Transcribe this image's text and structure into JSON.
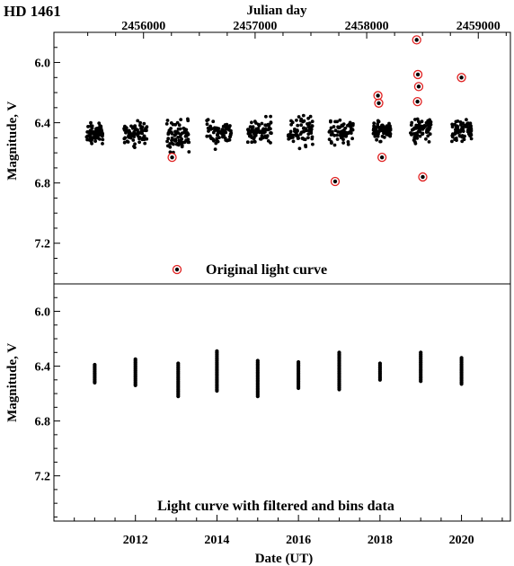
{
  "chart_data": {
    "type": "scatter",
    "title": "HD 1461",
    "top_axis": {
      "label": "Julian day",
      "ticks": [
        2456000,
        2457000,
        2458000,
        2459000
      ],
      "tick_labels": [
        "2456000",
        "2457000",
        "2458000",
        "2459000"
      ]
    },
    "bottom_axis": {
      "label": "Date (UT)",
      "range": [
        2010.0,
        2021.2
      ],
      "ticks": [
        2012,
        2014,
        2016,
        2018,
        2020
      ],
      "tick_labels": [
        "2012",
        "2014",
        "2016",
        "2018",
        "2020"
      ]
    },
    "panels": [
      {
        "ylabel": "Magnitude, V",
        "ylim": [
          7.47,
          5.8
        ],
        "y_inverted": true,
        "y_ticks": [
          6.0,
          6.4,
          6.8,
          7.2
        ],
        "y_tick_labels": [
          "6.0",
          "6.4",
          "6.8",
          "7.2"
        ],
        "legend": {
          "marker": "black dot with red circle",
          "label": "Original light curve",
          "placement": "bottom-center"
        },
        "seasons": [
          {
            "center": 2011.0,
            "halfwidth": 0.2,
            "mean": 6.47,
            "spread": 0.03
          },
          {
            "center": 2012.0,
            "halfwidth": 0.28,
            "mean": 6.47,
            "spread": 0.04
          },
          {
            "center": 2013.05,
            "halfwidth": 0.28,
            "mean": 6.49,
            "spread": 0.05
          },
          {
            "center": 2014.05,
            "halfwidth": 0.3,
            "mean": 6.47,
            "spread": 0.04
          },
          {
            "center": 2015.05,
            "halfwidth": 0.3,
            "mean": 6.46,
            "spread": 0.04
          },
          {
            "center": 2016.05,
            "halfwidth": 0.3,
            "mean": 6.46,
            "spread": 0.05
          },
          {
            "center": 2017.05,
            "halfwidth": 0.3,
            "mean": 6.45,
            "spread": 0.04
          },
          {
            "center": 2018.05,
            "halfwidth": 0.22,
            "mean": 6.45,
            "spread": 0.03
          },
          {
            "center": 2019.0,
            "halfwidth": 0.25,
            "mean": 6.45,
            "spread": 0.04
          },
          {
            "center": 2020.0,
            "halfwidth": 0.25,
            "mean": 6.45,
            "spread": 0.03
          }
        ],
        "outliers": [
          {
            "x": 2012.9,
            "y": 6.63
          },
          {
            "x": 2016.9,
            "y": 6.79
          },
          {
            "x": 2017.95,
            "y": 6.22
          },
          {
            "x": 2017.97,
            "y": 6.27
          },
          {
            "x": 2018.05,
            "y": 6.63
          },
          {
            "x": 2018.9,
            "y": 5.85
          },
          {
            "x": 2018.93,
            "y": 6.08
          },
          {
            "x": 2018.95,
            "y": 6.16
          },
          {
            "x": 2018.92,
            "y": 6.26
          },
          {
            "x": 2019.05,
            "y": 6.76
          },
          {
            "x": 2020.0,
            "y": 6.1
          }
        ]
      },
      {
        "ylabel": "Magnitude, V",
        "ylim": [
          7.53,
          5.8
        ],
        "y_inverted": true,
        "y_ticks": [
          6.0,
          6.4,
          6.8,
          7.2
        ],
        "y_tick_labels": [
          "6.0",
          "6.4",
          "6.8",
          "7.2"
        ],
        "annotation": "Light curve  with filtered and bins data",
        "bins": [
          {
            "x": 2011.0,
            "ymin": 6.39,
            "ymax": 6.52
          },
          {
            "x": 2012.0,
            "ymin": 6.35,
            "ymax": 6.54
          },
          {
            "x": 2013.05,
            "ymin": 6.38,
            "ymax": 6.62
          },
          {
            "x": 2014.0,
            "ymin": 6.29,
            "ymax": 6.58
          },
          {
            "x": 2015.0,
            "ymin": 6.36,
            "ymax": 6.62
          },
          {
            "x": 2016.0,
            "ymin": 6.37,
            "ymax": 6.56
          },
          {
            "x": 2017.0,
            "ymin": 6.3,
            "ymax": 6.57
          },
          {
            "x": 2018.0,
            "ymin": 6.38,
            "ymax": 6.5
          },
          {
            "x": 2019.0,
            "ymin": 6.3,
            "ymax": 6.51
          },
          {
            "x": 2020.0,
            "ymin": 6.34,
            "ymax": 6.53
          }
        ]
      }
    ]
  }
}
